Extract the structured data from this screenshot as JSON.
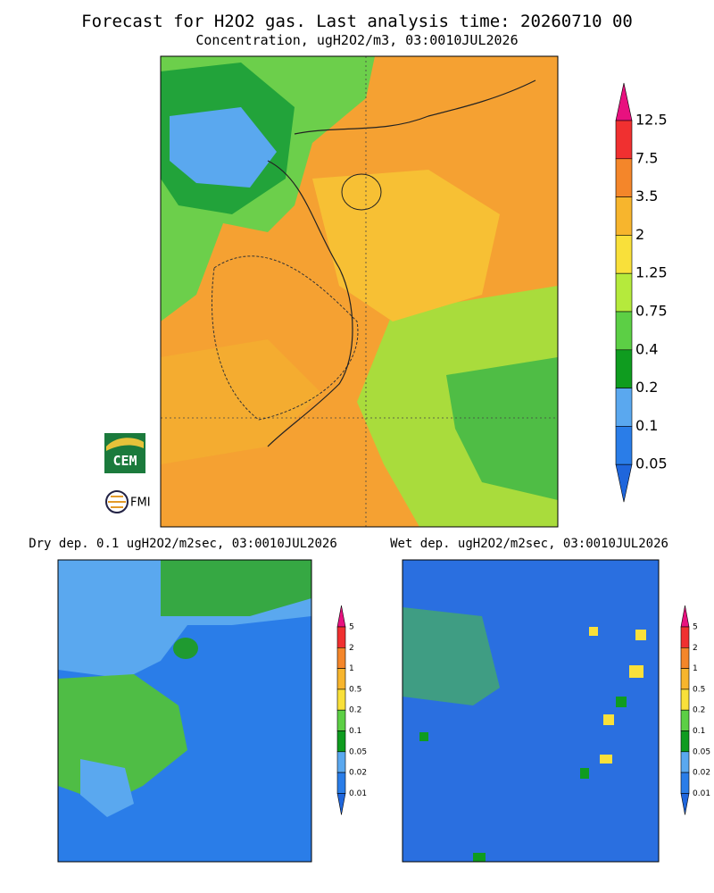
{
  "header": {
    "title": "Forecast for H2O2 gas. Last analysis time: 20260710 00",
    "subtitle": "Concentration, ugH2O2/m3, 03:0010JUL2026"
  },
  "logos": {
    "cem": "CEM",
    "fmi": "FMI"
  },
  "main_colorbar": {
    "labels": [
      12.5,
      7.5,
      3.5,
      2,
      1.25,
      0.75,
      0.4,
      0.2,
      0.1,
      0.05
    ],
    "colors": [
      "#e8117f",
      "#f03030",
      "#f4862a",
      "#f7b52d",
      "#f9e03a",
      "#b5ea3c",
      "#5ccf45",
      "#0f9c1f",
      "#5aa8ef",
      "#2a7de8",
      "#1f66dc"
    ]
  },
  "panels": [
    {
      "title": "Dry dep. 0.1 ugH2O2/m2sec, 03:0010JUL2026",
      "colorbar": {
        "labels": [
          5,
          2,
          1,
          0.5,
          0.2,
          0.1,
          0.05,
          0.02,
          0.01
        ],
        "colors": [
          "#e8117f",
          "#f03030",
          "#f4862a",
          "#f7b52d",
          "#f9e03a",
          "#5ccf45",
          "#0f9c1f",
          "#5aa8ef",
          "#2a7de8",
          "#1f66dc"
        ]
      }
    },
    {
      "title": "Wet dep. ugH2O2/m2sec, 03:0010JUL2026",
      "colorbar": {
        "labels": [
          5,
          2,
          1,
          0.5,
          0.2,
          0.1,
          0.05,
          0.02,
          0.01
        ],
        "colors": [
          "#e8117f",
          "#f03030",
          "#f4862a",
          "#f7b52d",
          "#f9e03a",
          "#5ccf45",
          "#0f9c1f",
          "#5aa8ef",
          "#2a7de8",
          "#1f66dc"
        ]
      }
    }
  ]
}
